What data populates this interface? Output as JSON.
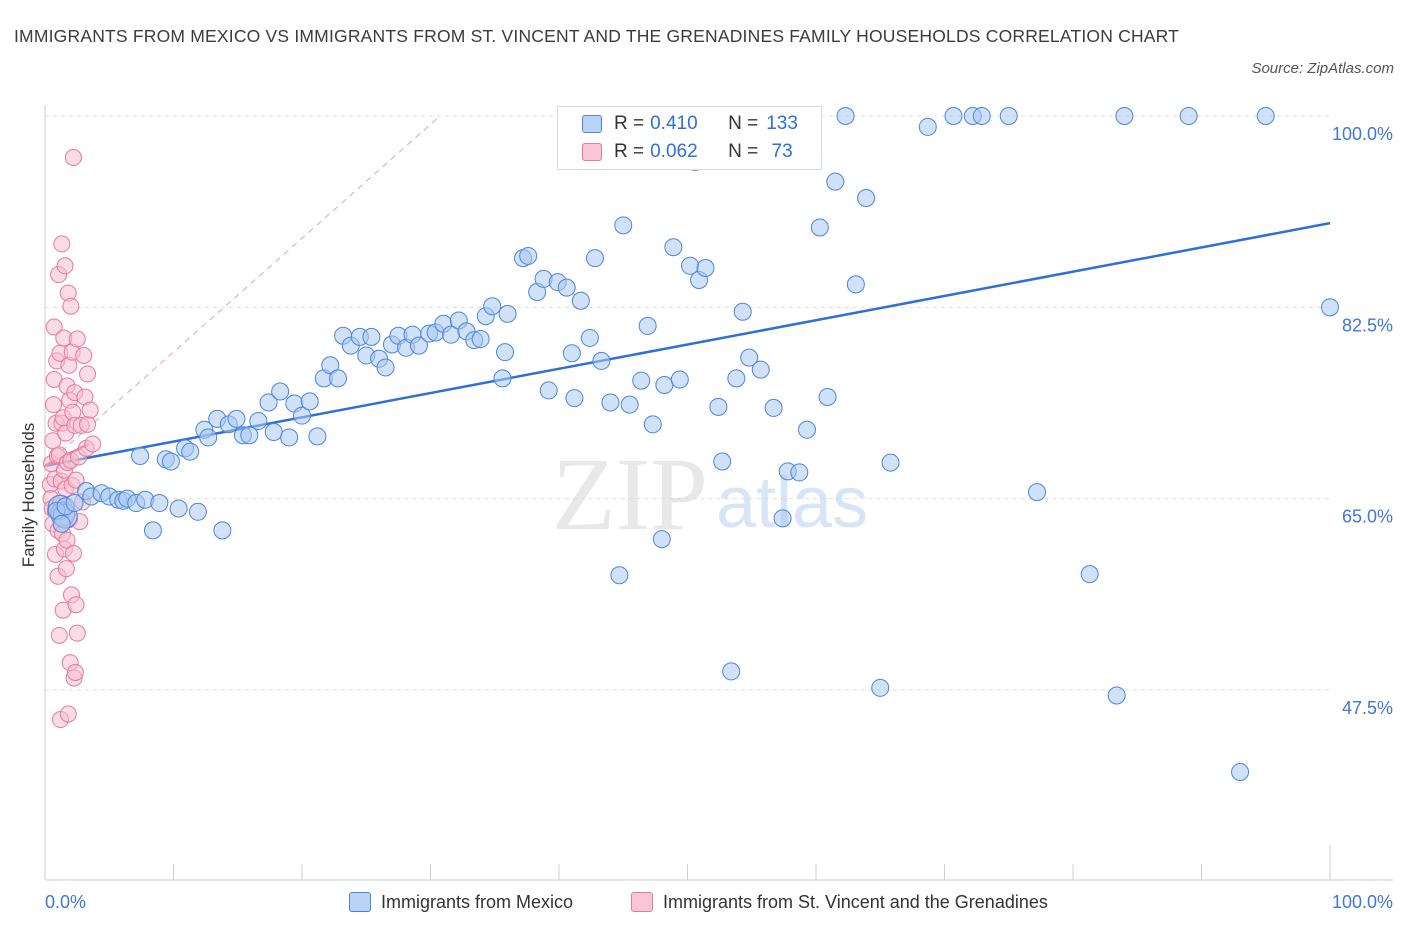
{
  "header": {
    "title": "IMMIGRANTS FROM MEXICO VS IMMIGRANTS FROM ST. VINCENT AND THE GRENADINES FAMILY HOUSEHOLDS CORRELATION CHART",
    "source": "Source: ZipAtlas.com"
  },
  "watermark": {
    "zip": "ZIP",
    "atlas": "atlas"
  },
  "legend": {
    "rows": [
      {
        "r_label": "R = ",
        "r_value": "0.410",
        "n_label": "N = ",
        "n_value": "133"
      },
      {
        "r_label": "R = ",
        "r_value": "0.062",
        "n_label": "N = ",
        "n_value": " 73"
      }
    ]
  },
  "colors": {
    "blue": "#4a86e0",
    "blue_fill": "#aac8f2",
    "blue_line": "#2f6fd6",
    "pink": "#e8799c",
    "pink_fill": "#f6bfd0",
    "pink_line": "#e0557e",
    "grid": "#dedede",
    "tick_label": "#3d78d8"
  },
  "chart_data": {
    "type": "scatter",
    "title": "IMMIGRANTS FROM MEXICO VS IMMIGRANTS FROM ST. VINCENT AND THE GRENADINES FAMILY HOUSEHOLDS CORRELATION CHART",
    "xlabel": "",
    "ylabel": "Family Households",
    "xlim": [
      0,
      100
    ],
    "ylim": [
      32,
      101.5
    ],
    "x_tick_labels": [
      "0.0%",
      "100.0%"
    ],
    "y_ticks": [
      47.5,
      65.0,
      82.5,
      100.0
    ],
    "y_tick_labels": [
      "47.5%",
      "65.0%",
      "82.5%",
      "100.0%"
    ],
    "grid": "horizontal dashed",
    "legend_position": "top-center",
    "series": [
      {
        "name": "Immigrants from Mexico",
        "color": "blue",
        "trend": {
          "x": [
            0,
            100
          ],
          "y": [
            68.0,
            90.2
          ]
        },
        "points": [
          [
            0.4,
            64.2
          ],
          [
            0.6,
            63.6
          ],
          [
            0.8,
            63.4
          ],
          [
            0.9,
            63.9
          ],
          [
            1.3,
            62.7
          ],
          [
            1.6,
            64.3
          ],
          [
            2.3,
            64.6
          ],
          [
            3.2,
            65.7
          ],
          [
            3.6,
            65.2
          ],
          [
            4.4,
            65.5
          ],
          [
            5.0,
            65.2
          ],
          [
            5.7,
            64.9
          ],
          [
            6.1,
            64.8
          ],
          [
            6.4,
            65.0
          ],
          [
            7.1,
            64.6
          ],
          [
            7.4,
            68.9
          ],
          [
            7.8,
            64.9
          ],
          [
            8.4,
            62.1
          ],
          [
            8.9,
            64.6
          ],
          [
            9.4,
            68.6
          ],
          [
            9.8,
            68.4
          ],
          [
            10.4,
            64.1
          ],
          [
            10.9,
            69.6
          ],
          [
            11.3,
            69.3
          ],
          [
            11.9,
            63.8
          ],
          [
            12.4,
            71.3
          ],
          [
            12.7,
            70.6
          ],
          [
            13.4,
            72.3
          ],
          [
            13.8,
            62.1
          ],
          [
            14.3,
            71.8
          ],
          [
            14.9,
            72.3
          ],
          [
            15.4,
            70.8
          ],
          [
            15.9,
            70.8
          ],
          [
            16.6,
            72.1
          ],
          [
            17.4,
            73.8
          ],
          [
            17.8,
            71.1
          ],
          [
            18.3,
            74.8
          ],
          [
            19.0,
            70.6
          ],
          [
            19.4,
            73.7
          ],
          [
            20.0,
            72.6
          ],
          [
            20.6,
            73.9
          ],
          [
            21.2,
            70.7
          ],
          [
            21.7,
            76.0
          ],
          [
            22.2,
            77.2
          ],
          [
            22.8,
            76.0
          ],
          [
            23.2,
            79.9
          ],
          [
            23.8,
            79.0
          ],
          [
            24.5,
            79.8
          ],
          [
            25.0,
            78.1
          ],
          [
            25.4,
            79.8
          ],
          [
            26.0,
            77.8
          ],
          [
            26.5,
            77.0
          ],
          [
            27.0,
            79.1
          ],
          [
            27.5,
            79.9
          ],
          [
            28.1,
            78.8
          ],
          [
            28.6,
            80.0
          ],
          [
            29.1,
            79.0
          ],
          [
            29.9,
            80.1
          ],
          [
            30.4,
            80.2
          ],
          [
            31.0,
            81.0
          ],
          [
            31.6,
            80.0
          ],
          [
            32.2,
            81.3
          ],
          [
            32.8,
            80.3
          ],
          [
            33.4,
            79.5
          ],
          [
            33.9,
            79.6
          ],
          [
            34.3,
            81.7
          ],
          [
            34.8,
            82.6
          ],
          [
            35.6,
            76.0
          ],
          [
            36.0,
            81.9
          ],
          [
            35.8,
            78.4
          ],
          [
            37.2,
            87.0
          ],
          [
            37.6,
            87.2
          ],
          [
            38.3,
            83.9
          ],
          [
            38.8,
            85.1
          ],
          [
            39.2,
            74.9
          ],
          [
            39.9,
            84.8
          ],
          [
            40.6,
            84.3
          ],
          [
            41.2,
            74.2
          ],
          [
            41.7,
            83.1
          ],
          [
            42.4,
            79.7
          ],
          [
            42.8,
            87.0
          ],
          [
            43.3,
            77.6
          ],
          [
            41.0,
            78.3
          ],
          [
            44.0,
            73.8
          ],
          [
            45.0,
            90.0
          ],
          [
            44.7,
            58.0
          ],
          [
            45.5,
            73.6
          ],
          [
            46.4,
            75.8
          ],
          [
            46.9,
            80.8
          ],
          [
            47.3,
            71.8
          ],
          [
            48.0,
            61.3
          ],
          [
            48.2,
            75.4
          ],
          [
            48.9,
            88.0
          ],
          [
            49.4,
            75.9
          ],
          [
            50.2,
            86.3
          ],
          [
            50.6,
            95.8
          ],
          [
            50.9,
            85.0
          ],
          [
            51.4,
            86.1
          ],
          [
            52.4,
            73.4
          ],
          [
            52.7,
            68.4
          ],
          [
            53.4,
            49.2
          ],
          [
            53.8,
            76.0
          ],
          [
            54.3,
            82.1
          ],
          [
            54.8,
            77.9
          ],
          [
            55.7,
            76.8
          ],
          [
            56.0,
            100.0
          ],
          [
            56.7,
            73.3
          ],
          [
            57.4,
            63.2
          ],
          [
            57.8,
            67.5
          ],
          [
            58.3,
            100.0
          ],
          [
            58.7,
            67.4
          ],
          [
            59.3,
            71.3
          ],
          [
            60.3,
            89.8
          ],
          [
            60.9,
            74.3
          ],
          [
            61.5,
            94.0
          ],
          [
            62.3,
            100.0
          ],
          [
            63.1,
            84.6
          ],
          [
            63.9,
            92.5
          ],
          [
            65.0,
            47.7
          ],
          [
            65.8,
            68.3
          ],
          [
            68.7,
            99.0
          ],
          [
            70.7,
            100.0
          ],
          [
            72.2,
            100.0
          ],
          [
            72.9,
            100.0
          ],
          [
            75.0,
            100.0
          ],
          [
            77.2,
            65.6
          ],
          [
            81.3,
            58.1
          ],
          [
            83.4,
            47.0
          ],
          [
            84.0,
            100.0
          ],
          [
            89.0,
            100.0
          ],
          [
            93.0,
            40.0
          ],
          [
            95.0,
            100.0
          ],
          [
            100.0,
            82.5
          ]
        ]
      },
      {
        "name": "Immigrants from St. Vincent and the Grenadines",
        "color": "pink",
        "trend": {
          "x": [
            0,
            3.4
          ],
          "y": [
            68.0,
            70.0
          ]
        },
        "points": [
          [
            0.1,
            66.3
          ],
          [
            0.15,
            65.0
          ],
          [
            0.2,
            68.2
          ],
          [
            0.25,
            64.1
          ],
          [
            0.3,
            62.7
          ],
          [
            0.3,
            70.3
          ],
          [
            0.35,
            73.6
          ],
          [
            0.4,
            75.9
          ],
          [
            0.4,
            80.7
          ],
          [
            0.45,
            66.8
          ],
          [
            0.5,
            63.9
          ],
          [
            0.5,
            59.9
          ],
          [
            0.55,
            71.9
          ],
          [
            0.6,
            77.6
          ],
          [
            0.6,
            64.4
          ],
          [
            0.65,
            68.9
          ],
          [
            0.7,
            57.9
          ],
          [
            0.7,
            62.1
          ],
          [
            0.75,
            85.5
          ],
          [
            0.8,
            69.0
          ],
          [
            0.8,
            52.5
          ],
          [
            0.85,
            78.3
          ],
          [
            0.9,
            64.6
          ],
          [
            0.9,
            44.8
          ],
          [
            0.95,
            66.6
          ],
          [
            1.0,
            88.3
          ],
          [
            1.0,
            71.9
          ],
          [
            1.05,
            61.8
          ],
          [
            1.1,
            54.8
          ],
          [
            1.1,
            72.4
          ],
          [
            1.15,
            79.7
          ],
          [
            1.2,
            67.6
          ],
          [
            1.2,
            60.4
          ],
          [
            1.25,
            86.3
          ],
          [
            1.3,
            71.0
          ],
          [
            1.3,
            65.9
          ],
          [
            1.35,
            58.6
          ],
          [
            1.4,
            75.3
          ],
          [
            1.4,
            61.2
          ],
          [
            1.45,
            68.3
          ],
          [
            1.5,
            83.8
          ],
          [
            1.5,
            45.3
          ],
          [
            1.55,
            77.2
          ],
          [
            1.6,
            74.0
          ],
          [
            1.6,
            63.1
          ],
          [
            1.65,
            50.0
          ],
          [
            1.7,
            68.5
          ],
          [
            1.7,
            82.6
          ],
          [
            1.75,
            56.2
          ],
          [
            1.8,
            78.4
          ],
          [
            1.8,
            66.2
          ],
          [
            1.85,
            72.9
          ],
          [
            1.9,
            96.2
          ],
          [
            1.9,
            60.0
          ],
          [
            1.95,
            48.6
          ],
          [
            2.0,
            74.7
          ],
          [
            2.0,
            71.7
          ],
          [
            2.05,
            49.1
          ],
          [
            2.1,
            66.7
          ],
          [
            2.1,
            55.3
          ],
          [
            2.2,
            52.7
          ],
          [
            2.2,
            79.6
          ],
          [
            2.3,
            68.8
          ],
          [
            2.4,
            62.9
          ],
          [
            2.5,
            71.7
          ],
          [
            2.6,
            64.7
          ],
          [
            2.7,
            78.1
          ],
          [
            2.8,
            74.3
          ],
          [
            2.9,
            69.6
          ],
          [
            3.0,
            71.8
          ],
          [
            3.0,
            76.4
          ],
          [
            3.2,
            73.1
          ],
          [
            3.4,
            70.0
          ]
        ]
      }
    ]
  },
  "bottom_legend": {
    "items": [
      {
        "label": "Immigrants from Mexico"
      },
      {
        "label": "Immigrants from St. Vincent and the Grenadines"
      }
    ]
  }
}
